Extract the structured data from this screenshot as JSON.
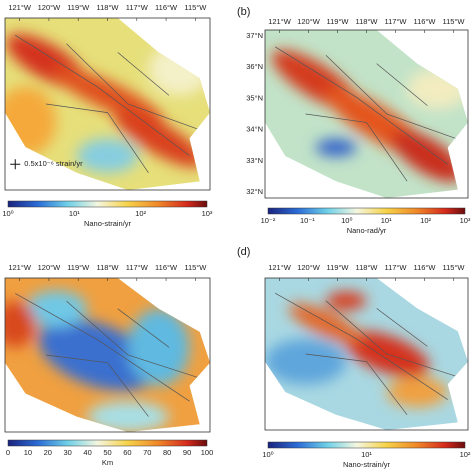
{
  "panels": [
    {
      "label": null,
      "lon_ticks": [
        "121°W",
        "120°W",
        "119°W",
        "118°W",
        "117°W",
        "116°W",
        "115°W"
      ],
      "lat_ticks": [],
      "legend": "0.5x10⁻⁶ strain/yr",
      "colorbar_ticks": [
        "10⁰",
        "10¹",
        "10²",
        "10³"
      ],
      "colorbar_label": "Nano-strain/yr"
    },
    {
      "label": "(b)",
      "lon_ticks": [
        "121°W",
        "120°W",
        "119°W",
        "118°W",
        "117°W",
        "116°W",
        "115°W"
      ],
      "lat_ticks": [
        "37°N",
        "36°N",
        "35°N",
        "34°N",
        "33°N",
        "32°N"
      ],
      "legend": null,
      "colorbar_ticks": [
        "10⁻²",
        "10⁻¹",
        "10⁰",
        "10¹",
        "10²",
        "10³"
      ],
      "colorbar_label": "Nano-rad/yr"
    },
    {
      "label": null,
      "lon_ticks": [
        "121°W",
        "120°W",
        "119°W",
        "118°W",
        "117°W",
        "116°W",
        "115°W"
      ],
      "lat_ticks": [],
      "legend": null,
      "colorbar_ticks": [
        "0",
        "10",
        "20",
        "30",
        "40",
        "50",
        "60",
        "70",
        "80",
        "90",
        "100"
      ],
      "colorbar_label": "Km"
    },
    {
      "label": "(d)",
      "lon_ticks": [
        "121°W",
        "120°W",
        "119°W",
        "118°W",
        "117°W",
        "116°W",
        "115°W"
      ],
      "lat_ticks": [],
      "legend": null,
      "colorbar_ticks": [
        "10⁰",
        "10¹",
        "10²"
      ],
      "colorbar_label": "Nano-strain/yr"
    }
  ]
}
